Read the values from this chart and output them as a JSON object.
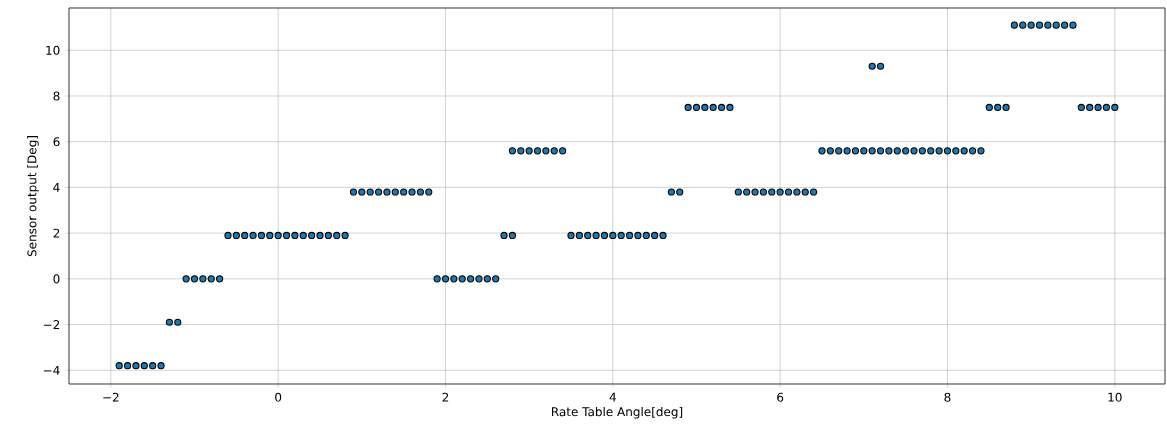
{
  "chart_data": {
    "type": "scatter",
    "xlabel": "Rate Table Angle[deg]",
    "ylabel": "Sensor output [Deg]",
    "xlim": [
      -2.5,
      10.6
    ],
    "ylim": [
      -4.6,
      11.85
    ],
    "xticks": [
      {
        "value": -2,
        "label": "−2"
      },
      0,
      2,
      4,
      6,
      8,
      10
    ],
    "yticks": [
      {
        "value": -4,
        "label": "−4"
      },
      {
        "value": -2,
        "label": "−2"
      },
      0,
      2,
      4,
      6,
      8,
      10
    ],
    "grid": true,
    "marker": "circle",
    "series": [
      {
        "color": "#1f77b4",
        "x": [
          -1.9,
          -1.8,
          -1.7,
          -1.6,
          -1.5,
          -1.4,
          -1.3,
          -1.2,
          -1.1,
          -1.0,
          -0.9,
          -0.8,
          -0.7,
          -0.6,
          -0.5,
          -0.4,
          -0.3,
          -0.2,
          -0.1,
          0.0,
          0.1,
          0.2,
          0.3,
          0.4,
          0.5,
          0.6,
          0.7,
          0.8,
          0.9,
          1.0,
          1.1,
          1.2,
          1.3,
          1.4,
          1.5,
          1.6,
          1.7,
          1.8,
          1.9,
          2.0,
          2.1,
          2.2,
          2.3,
          2.4,
          2.5,
          2.6,
          2.7,
          2.8,
          2.8,
          2.9,
          3.0,
          3.1,
          3.2,
          3.3,
          3.4,
          3.5,
          3.6,
          3.7,
          3.8,
          3.9,
          4.0,
          4.1,
          4.2,
          4.3,
          4.4,
          4.5,
          4.6,
          4.7,
          4.8,
          4.9,
          5.0,
          5.1,
          5.2,
          5.3,
          5.4,
          5.5,
          5.6,
          5.7,
          5.8,
          5.9,
          6.0,
          6.1,
          6.2,
          6.3,
          6.4,
          6.5,
          6.6,
          6.7,
          6.8,
          6.9,
          7.0,
          7.1,
          7.2,
          7.3,
          7.4,
          7.5,
          7.6,
          7.7,
          7.8,
          7.9,
          8.0,
          8.1,
          8.2,
          8.3,
          8.4,
          7.1,
          7.2,
          8.5,
          8.6,
          8.7,
          8.8,
          8.9,
          9.0,
          9.1,
          9.2,
          9.3,
          9.4,
          9.5,
          9.6,
          9.7,
          9.8,
          9.9,
          10.0
        ],
        "values": [
          -3.8,
          -3.8,
          -3.8,
          -3.8,
          -3.8,
          -3.8,
          -1.9,
          -1.9,
          0,
          0,
          0,
          0,
          0,
          1.9,
          1.9,
          1.9,
          1.9,
          1.9,
          1.9,
          1.9,
          1.9,
          1.9,
          1.9,
          1.9,
          1.9,
          1.9,
          1.9,
          1.9,
          3.8,
          3.8,
          3.8,
          3.8,
          3.8,
          3.8,
          3.8,
          3.8,
          3.8,
          3.8,
          0,
          0,
          0,
          0,
          0,
          0,
          0,
          0,
          1.9,
          1.9,
          5.6,
          5.6,
          5.6,
          5.6,
          5.6,
          5.6,
          5.6,
          1.9,
          1.9,
          1.9,
          1.9,
          1.9,
          1.9,
          1.9,
          1.9,
          1.9,
          1.9,
          1.9,
          1.9,
          3.8,
          3.8,
          7.5,
          7.5,
          7.5,
          7.5,
          7.5,
          7.5,
          3.8,
          3.8,
          3.8,
          3.8,
          3.8,
          3.8,
          3.8,
          3.8,
          3.8,
          3.8,
          5.6,
          5.6,
          5.6,
          5.6,
          5.6,
          5.6,
          5.6,
          5.6,
          5.6,
          5.6,
          5.6,
          5.6,
          5.6,
          5.6,
          5.6,
          5.6,
          5.6,
          5.6,
          5.6,
          5.6,
          9.3,
          9.3,
          7.5,
          7.5,
          7.5,
          11.1,
          11.1,
          11.1,
          11.1,
          11.1,
          11.1,
          11.1,
          11.1,
          7.5,
          7.5,
          7.5,
          7.5,
          7.5
        ]
      }
    ]
  }
}
